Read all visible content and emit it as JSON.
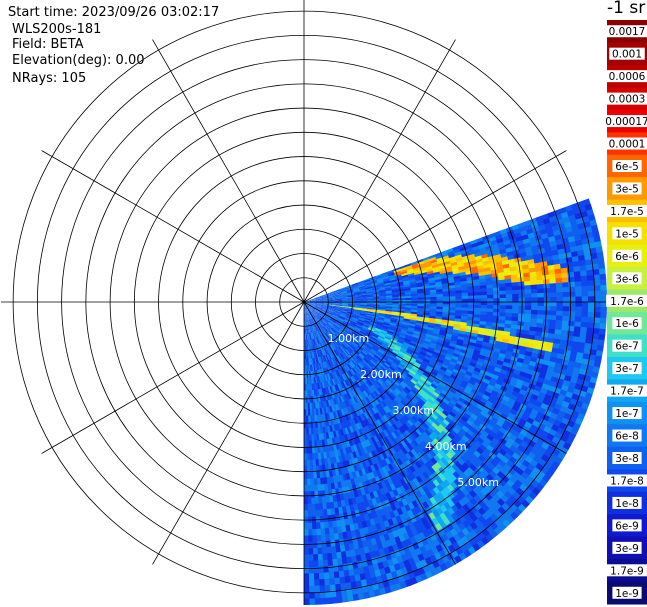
{
  "info": {
    "start_time": "Start time: 2023/09/26 03:02:17",
    "instrument": "WLS200s-181",
    "field": "Field: BETA",
    "elevation": "Elevation(deg): 0.00",
    "nrays": "NRays: 105"
  },
  "colorbar": {
    "unit_label": "-1 sr",
    "levels": [
      {
        "label": "0.0017",
        "color": "#8b0000"
      },
      {
        "label": "0.001",
        "color": "#a30000"
      },
      {
        "label": "0.0006",
        "color": "#bb0000"
      },
      {
        "label": "0.0003",
        "color": "#d40000"
      },
      {
        "label": "0.00017",
        "color": "#ee0000"
      },
      {
        "label": "0.0001",
        "color": "#ff3300"
      },
      {
        "label": "6e-5",
        "color": "#ff6600"
      },
      {
        "label": "3e-5",
        "color": "#ff9900"
      },
      {
        "label": "1.7e-5",
        "color": "#ffc000"
      },
      {
        "label": "1e-5",
        "color": "#f5e000"
      },
      {
        "label": "6e-6",
        "color": "#e8ef10"
      },
      {
        "label": "3e-6",
        "color": "#c8f040"
      },
      {
        "label": "1.7e-6",
        "color": "#9de86a"
      },
      {
        "label": "1e-6",
        "color": "#70e896"
      },
      {
        "label": "6e-7",
        "color": "#40e0c8"
      },
      {
        "label": "3e-7",
        "color": "#20c8f0"
      },
      {
        "label": "1.7e-7",
        "color": "#10a8f0"
      },
      {
        "label": "1e-7",
        "color": "#1090f0"
      },
      {
        "label": "6e-8",
        "color": "#1078f0"
      },
      {
        "label": "3e-8",
        "color": "#1060f0"
      },
      {
        "label": "1.7e-8",
        "color": "#1048f0"
      },
      {
        "label": "1e-8",
        "color": "#1030e0"
      },
      {
        "label": "6e-9",
        "color": "#1018d0"
      },
      {
        "label": "3e-9",
        "color": "#1010b0"
      },
      {
        "label": "1.7e-9",
        "color": "#0c0c90"
      },
      {
        "label": "1e-9",
        "color": "#0a0a70"
      }
    ]
  },
  "chart_data": {
    "type": "heatmap",
    "projection": "polar",
    "title": "",
    "range_unit": "km",
    "range_labels": [
      "1.00km",
      "2.00km",
      "3.00km",
      "4.00km",
      "5.00km"
    ],
    "range_rings_km": [
      0.5,
      1.0,
      1.5,
      2.0,
      2.5,
      3.0,
      3.5,
      4.0,
      4.5,
      5.0,
      5.5,
      6.0
    ],
    "max_range_km": 6.25,
    "spoke_interval_deg": 30,
    "scan_azimuth_deg": [
      70,
      180
    ],
    "nrays": 105,
    "background_level": "3e-8",
    "features": [
      {
        "description": "elevated backscatter layer",
        "level": "1.7e-5",
        "range_km": [
          2.0,
          5.5
        ],
        "azimuth_deg": [
          71,
          86
        ]
      },
      {
        "description": "linear return",
        "level": "6e-6",
        "range_km": [
          0.5,
          5.2
        ],
        "azimuth_deg": [
          96,
          101
        ]
      },
      {
        "description": "diagonal band",
        "level": "3e-7",
        "range_km": [
          1.5,
          5.5
        ],
        "azimuth_deg": [
          110,
          150
        ]
      }
    ]
  }
}
